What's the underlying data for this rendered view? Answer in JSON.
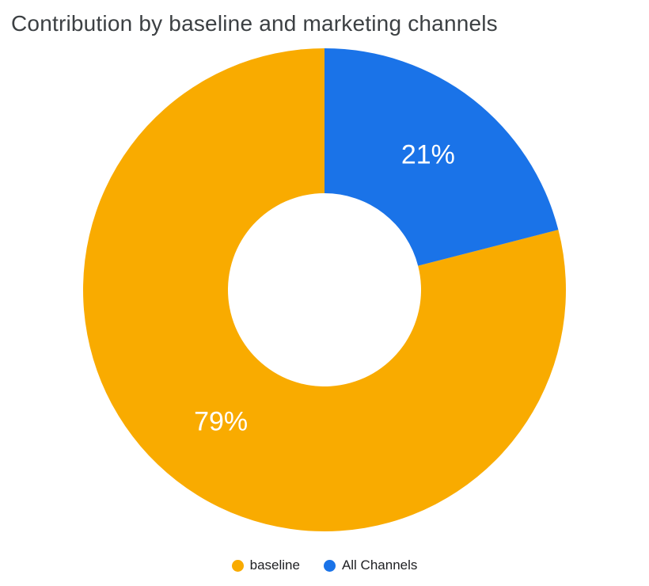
{
  "chart_data": {
    "type": "pie",
    "donut": true,
    "title": "Contribution by baseline and marketing channels",
    "direction": "counterclockwise",
    "start_angle_deg": 0,
    "inner_radius_ratio": 0.4,
    "legend_position": "bottom",
    "label_color": "#ffffff",
    "slices": [
      {
        "name": "baseline",
        "value": 79,
        "pct_label": "79%",
        "color": "#F9AB00"
      },
      {
        "name": "All Channels",
        "value": 21,
        "pct_label": "21%",
        "color": "#1A73E8"
      }
    ]
  }
}
